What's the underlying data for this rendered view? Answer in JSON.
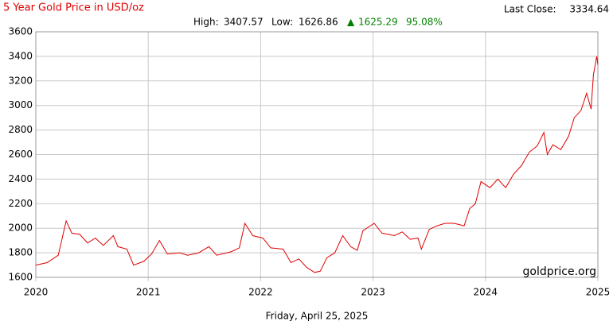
{
  "chart_data": {
    "type": "line",
    "title": "5 Year Gold Price in USD/oz",
    "last_close_label": "Last Close:",
    "last_close": "3334.64",
    "high_label": "High:",
    "high": "3407.57",
    "low_label": "Low:",
    "low": "1626.86",
    "change_arrow": "▲",
    "change": "1625.29",
    "change_pct": "95.08%",
    "watermark": "goldprice.org",
    "date_label": "Friday, April 25, 2025",
    "x": [
      2020.0,
      2020.1,
      2020.2,
      2020.27,
      2020.32,
      2020.39,
      2020.46,
      2020.53,
      2020.6,
      2020.69,
      2020.73,
      2020.81,
      2020.87,
      2020.96,
      2021.03,
      2021.1,
      2021.17,
      2021.28,
      2021.35,
      2021.45,
      2021.54,
      2021.61,
      2021.74,
      2021.81,
      2021.86,
      2021.93,
      2022.02,
      2022.09,
      2022.2,
      2022.27,
      2022.34,
      2022.41,
      2022.48,
      2022.53,
      2022.59,
      2022.66,
      2022.73,
      2022.8,
      2022.86,
      2022.91,
      2023.01,
      2023.08,
      2023.19,
      2023.26,
      2023.33,
      2023.4,
      2023.43,
      2023.5,
      2023.57,
      2023.64,
      2023.72,
      2023.81,
      2023.86,
      2023.91,
      2023.96,
      2024.04,
      2024.11,
      2024.18,
      2024.25,
      2024.32,
      2024.39,
      2024.46,
      2024.52,
      2024.55,
      2024.6,
      2024.67,
      2024.74,
      2024.79,
      2024.85,
      2024.9,
      2024.94,
      2024.96,
      2024.99,
      2025.0
    ],
    "series": [
      {
        "name": "Gold",
        "color": "#e00000",
        "values": [
          1700,
          1720,
          1780,
          2060,
          1960,
          1950,
          1880,
          1920,
          1860,
          1940,
          1850,
          1830,
          1700,
          1730,
          1790,
          1900,
          1790,
          1800,
          1780,
          1800,
          1850,
          1780,
          1810,
          1840,
          2040,
          1940,
          1920,
          1840,
          1830,
          1720,
          1750,
          1680,
          1640,
          1650,
          1760,
          1800,
          1940,
          1850,
          1820,
          1980,
          2040,
          1960,
          1940,
          1970,
          1910,
          1920,
          1830,
          1990,
          2020,
          2040,
          2040,
          2020,
          2160,
          2200,
          2380,
          2330,
          2400,
          2330,
          2440,
          2510,
          2620,
          2670,
          2780,
          2600,
          2680,
          2640,
          2750,
          2900,
          2960,
          3100,
          2970,
          3250,
          3400,
          3330
        ]
      }
    ],
    "xlim": [
      2020,
      2025
    ],
    "xticks": [
      2020,
      2021,
      2022,
      2023,
      2024,
      2025
    ],
    "ylim": [
      1600,
      3600
    ],
    "yticks": [
      1600,
      1800,
      2000,
      2200,
      2400,
      2600,
      2800,
      3000,
      3200,
      3400,
      3600
    ],
    "grid": true
  }
}
